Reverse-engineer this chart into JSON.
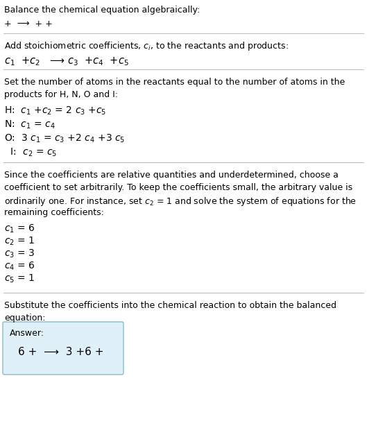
{
  "title": "Balance the chemical equation algebraically:",
  "line1": "+  ⟶  + +",
  "section1_header": "Add stoichiometric coefficients, $c_i$, to the reactants and products:",
  "section1_eq": "$c_1$  +$c_2$   ⟶ $c_3$  +$c_4$  +$c_5$",
  "section2_header1": "Set the number of atoms in the reactants equal to the number of atoms in the",
  "section2_header2": "products for H, N, O and I:",
  "section2_lines": [
    "H:  $c_1$ +$c_2$ = 2 $c_3$ +$c_5$",
    "N:  $c_1$ = $c_4$",
    "O:  3 $c_1$ = $c_3$ +2 $c_4$ +3 $c_5$",
    "  I:  $c_2$ = $c_5$"
  ],
  "section3_lines": [
    "Since the coefficients are relative quantities and underdetermined, choose a",
    "coefficient to set arbitrarily. To keep the coefficients small, the arbitrary value is",
    "ordinarily one. For instance, set $c_2$ = 1 and solve the system of equations for the",
    "remaining coefficients:"
  ],
  "coeff_lines": [
    "$c_1$ = 6",
    "$c_2$ = 1",
    "$c_3$ = 3",
    "$c_4$ = 6",
    "$c_5$ = 1"
  ],
  "section4_line1": "Substitute the coefficients into the chemical reaction to obtain the balanced",
  "section4_line2": "equation:",
  "answer_label": "Answer:",
  "answer_eq": "6 +  ⟶  3 +6 +",
  "bg_color": "#ffffff",
  "text_color": "#000000",
  "box_bg": "#dff0f8",
  "box_border": "#88bbcc",
  "line_color": "#bbbbbb",
  "fs": 9.0
}
